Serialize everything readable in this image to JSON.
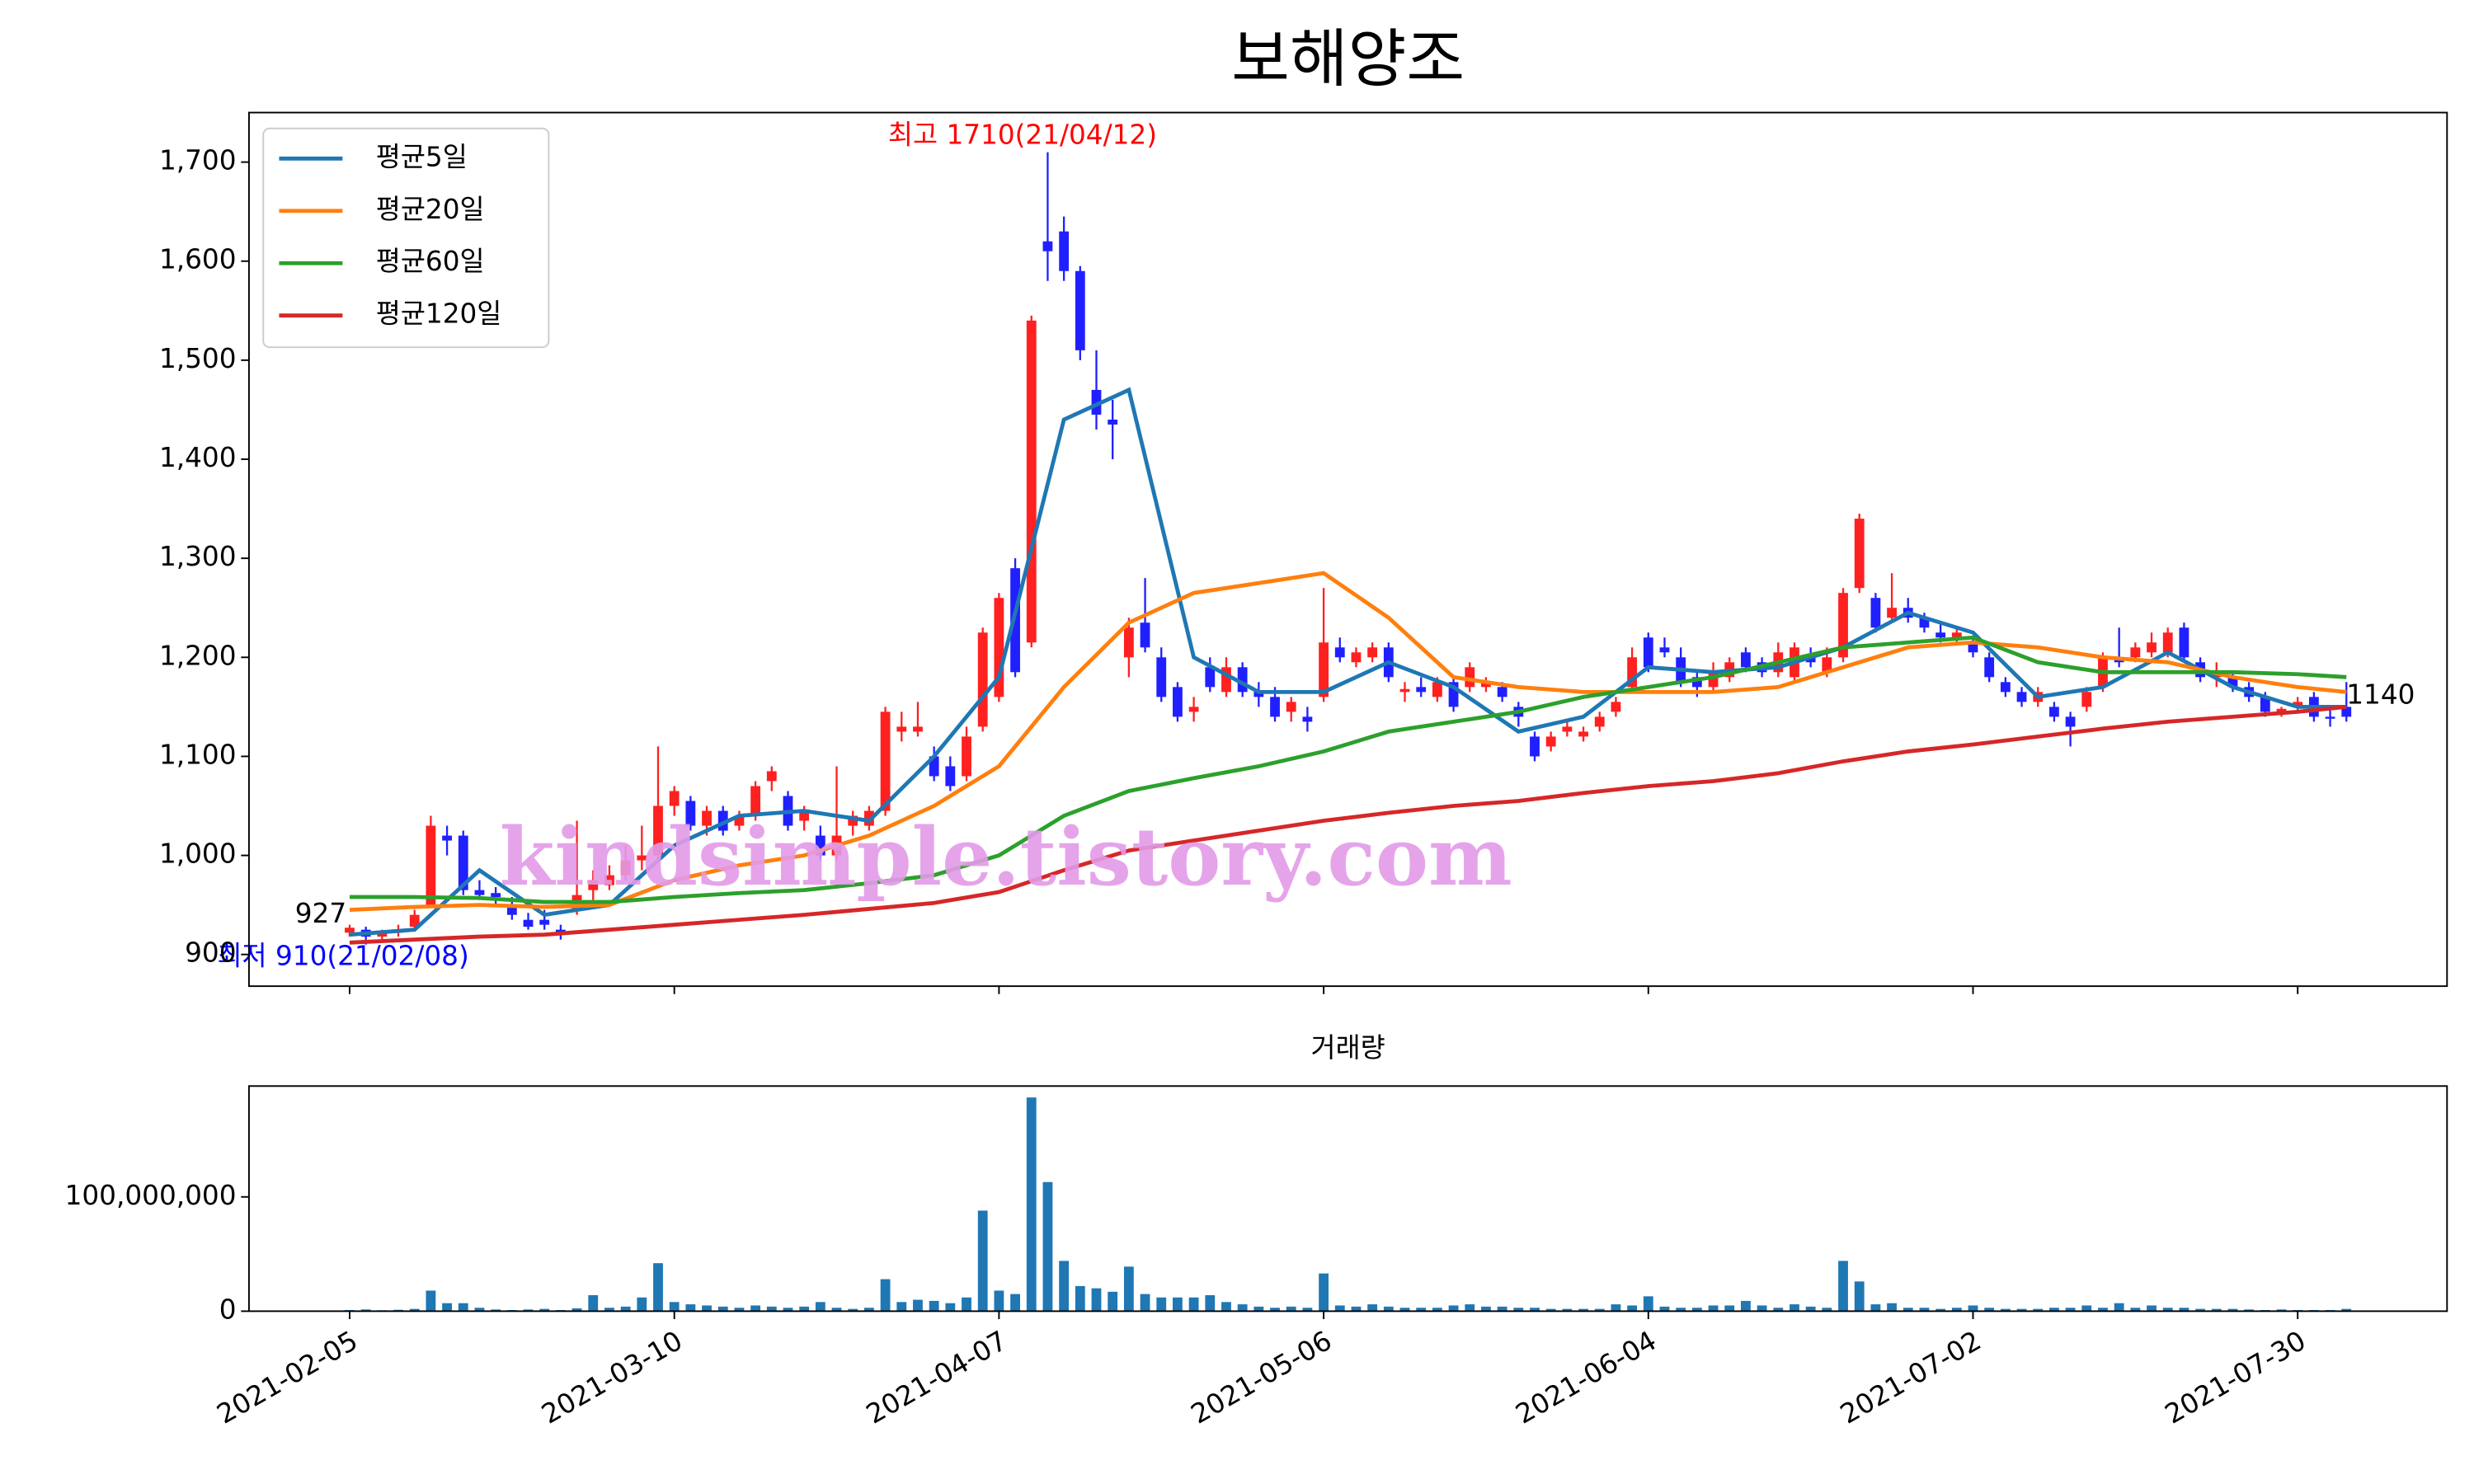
{
  "chart_data": {
    "type": "candlestick",
    "title": "보해양조",
    "volume_title": "거래량",
    "watermark": "kindsimple.tistory.com",
    "high_label": "최고 1710(21/04/12)",
    "low_label": "최저 910(21/02/08)",
    "first_close": 927,
    "last_close": 1140,
    "up_color": "#ff2020",
    "down_color": "#2020ff",
    "volume_color": "#1f77b4",
    "xlim": [
      -6.2,
      129.2
    ],
    "xticks": [
      {
        "value": 0,
        "label": "2021-02-05"
      },
      {
        "value": 20,
        "label": "2021-03-10"
      },
      {
        "value": 40,
        "label": "2021-04-07"
      },
      {
        "value": 60,
        "label": "2021-05-06"
      },
      {
        "value": 80,
        "label": "2021-06-04"
      },
      {
        "value": 100,
        "label": "2021-07-02"
      },
      {
        "value": 120,
        "label": "2021-07-30"
      }
    ],
    "ylim": [
      868,
      1750
    ],
    "yticks": [
      900,
      {
        "value": 1000,
        "label": "1,000"
      },
      {
        "value": 1100,
        "label": "1,100"
      },
      {
        "value": 1200,
        "label": "1,200"
      },
      {
        "value": 1300,
        "label": "1,300"
      },
      {
        "value": 1400,
        "label": "1,400"
      },
      {
        "value": 1500,
        "label": "1,500"
      },
      {
        "value": 1600,
        "label": "1,600"
      },
      {
        "value": 1700,
        "label": "1,700"
      }
    ],
    "vol_ylim": [
      0,
      197000000
    ],
    "vol_yticks": [
      0,
      {
        "value": 100000000,
        "label": "100,000,000"
      }
    ],
    "ohlc": [
      [
        922,
        930,
        918,
        927
      ],
      [
        925,
        928,
        910,
        918
      ],
      [
        918,
        925,
        915,
        922
      ],
      [
        922,
        930,
        918,
        925
      ],
      [
        928,
        945,
        925,
        940
      ],
      [
        950,
        1040,
        948,
        1030
      ],
      [
        1020,
        1030,
        1000,
        1015
      ],
      [
        1020,
        1025,
        960,
        965
      ],
      [
        965,
        975,
        955,
        960
      ],
      [
        962,
        968,
        950,
        958
      ],
      [
        950,
        958,
        935,
        940
      ],
      [
        935,
        942,
        925,
        928
      ],
      [
        935,
        945,
        925,
        930
      ],
      [
        925,
        930,
        915,
        920
      ],
      [
        945,
        1035,
        940,
        960
      ],
      [
        965,
        985,
        955,
        975
      ],
      [
        970,
        990,
        965,
        980
      ],
      [
        980,
        1010,
        975,
        995
      ],
      [
        995,
        1030,
        985,
        1000
      ],
      [
        1000,
        1110,
        995,
        1050
      ],
      [
        1050,
        1070,
        1040,
        1065
      ],
      [
        1055,
        1060,
        1025,
        1030
      ],
      [
        1030,
        1050,
        1020,
        1045
      ],
      [
        1045,
        1050,
        1020,
        1025
      ],
      [
        1030,
        1045,
        1025,
        1040
      ],
      [
        1040,
        1075,
        1035,
        1070
      ],
      [
        1075,
        1090,
        1065,
        1085
      ],
      [
        1060,
        1065,
        1025,
        1030
      ],
      [
        1035,
        1050,
        1025,
        1045
      ],
      [
        1020,
        1030,
        995,
        1000
      ],
      [
        1000,
        1090,
        995,
        1020
      ],
      [
        1030,
        1045,
        1020,
        1040
      ],
      [
        1030,
        1050,
        1025,
        1045
      ],
      [
        1045,
        1150,
        1040,
        1145
      ],
      [
        1125,
        1145,
        1115,
        1130
      ],
      [
        1125,
        1155,
        1120,
        1130
      ],
      [
        1100,
        1110,
        1075,
        1080
      ],
      [
        1090,
        1100,
        1065,
        1070
      ],
      [
        1080,
        1130,
        1075,
        1120
      ],
      [
        1130,
        1230,
        1125,
        1225
      ],
      [
        1160,
        1265,
        1155,
        1260
      ],
      [
        1290,
        1300,
        1180,
        1185
      ],
      [
        1215,
        1545,
        1210,
        1540
      ],
      [
        1620,
        1710,
        1580,
        1610
      ],
      [
        1630,
        1645,
        1580,
        1590
      ],
      [
        1590,
        1595,
        1500,
        1510
      ],
      [
        1470,
        1510,
        1430,
        1445
      ],
      [
        1440,
        1460,
        1400,
        1435
      ],
      [
        1200,
        1240,
        1180,
        1230
      ],
      [
        1235,
        1280,
        1205,
        1210
      ],
      [
        1200,
        1210,
        1155,
        1160
      ],
      [
        1170,
        1175,
        1135,
        1140
      ],
      [
        1145,
        1160,
        1135,
        1150
      ],
      [
        1190,
        1200,
        1165,
        1170
      ],
      [
        1165,
        1200,
        1160,
        1190
      ],
      [
        1190,
        1195,
        1160,
        1165
      ],
      [
        1165,
        1175,
        1150,
        1160
      ],
      [
        1160,
        1170,
        1135,
        1140
      ],
      [
        1145,
        1160,
        1135,
        1155
      ],
      [
        1140,
        1150,
        1125,
        1135
      ],
      [
        1160,
        1270,
        1155,
        1215
      ],
      [
        1210,
        1220,
        1195,
        1200
      ],
      [
        1195,
        1210,
        1190,
        1205
      ],
      [
        1200,
        1215,
        1195,
        1210
      ],
      [
        1210,
        1215,
        1175,
        1180
      ],
      [
        1165,
        1175,
        1155,
        1168
      ],
      [
        1170,
        1180,
        1160,
        1165
      ],
      [
        1160,
        1180,
        1155,
        1175
      ],
      [
        1175,
        1180,
        1145,
        1150
      ],
      [
        1170,
        1195,
        1165,
        1190
      ],
      [
        1170,
        1180,
        1165,
        1175
      ],
      [
        1170,
        1175,
        1155,
        1160
      ],
      [
        1150,
        1155,
        1130,
        1140
      ],
      [
        1120,
        1125,
        1095,
        1100
      ],
      [
        1110,
        1125,
        1105,
        1120
      ],
      [
        1125,
        1135,
        1120,
        1130
      ],
      [
        1120,
        1130,
        1115,
        1125
      ],
      [
        1130,
        1145,
        1125,
        1140
      ],
      [
        1145,
        1160,
        1140,
        1155
      ],
      [
        1170,
        1210,
        1165,
        1200
      ],
      [
        1220,
        1225,
        1185,
        1190
      ],
      [
        1210,
        1220,
        1200,
        1205
      ],
      [
        1200,
        1210,
        1170,
        1175
      ],
      [
        1180,
        1185,
        1160,
        1170
      ],
      [
        1170,
        1195,
        1165,
        1185
      ],
      [
        1180,
        1200,
        1175,
        1195
      ],
      [
        1205,
        1210,
        1185,
        1190
      ],
      [
        1195,
        1200,
        1180,
        1185
      ],
      [
        1185,
        1215,
        1180,
        1205
      ],
      [
        1180,
        1215,
        1175,
        1210
      ],
      [
        1200,
        1210,
        1190,
        1195
      ],
      [
        1185,
        1210,
        1180,
        1200
      ],
      [
        1200,
        1270,
        1195,
        1265
      ],
      [
        1270,
        1345,
        1265,
        1340
      ],
      [
        1260,
        1265,
        1225,
        1230
      ],
      [
        1240,
        1285,
        1235,
        1250
      ],
      [
        1250,
        1260,
        1235,
        1240
      ],
      [
        1240,
        1245,
        1225,
        1230
      ],
      [
        1225,
        1235,
        1215,
        1220
      ],
      [
        1220,
        1230,
        1215,
        1225
      ],
      [
        1215,
        1220,
        1200,
        1205
      ],
      [
        1200,
        1205,
        1175,
        1180
      ],
      [
        1175,
        1180,
        1160,
        1165
      ],
      [
        1165,
        1170,
        1150,
        1155
      ],
      [
        1155,
        1170,
        1150,
        1165
      ],
      [
        1150,
        1155,
        1135,
        1140
      ],
      [
        1140,
        1145,
        1110,
        1130
      ],
      [
        1150,
        1170,
        1145,
        1165
      ],
      [
        1170,
        1205,
        1165,
        1200
      ],
      [
        1200,
        1230,
        1190,
        1195
      ],
      [
        1200,
        1215,
        1195,
        1210
      ],
      [
        1205,
        1225,
        1200,
        1215
      ],
      [
        1205,
        1230,
        1200,
        1225
      ],
      [
        1230,
        1235,
        1195,
        1200
      ],
      [
        1195,
        1200,
        1175,
        1180
      ],
      [
        1180,
        1195,
        1170,
        1185
      ],
      [
        1180,
        1185,
        1165,
        1170
      ],
      [
        1170,
        1175,
        1155,
        1160
      ],
      [
        1160,
        1165,
        1140,
        1145
      ],
      [
        1145,
        1150,
        1140,
        1148
      ],
      [
        1150,
        1160,
        1145,
        1155
      ],
      [
        1160,
        1165,
        1135,
        1140
      ],
      [
        1140,
        1150,
        1130,
        1138
      ],
      [
        1150,
        1175,
        1135,
        1140
      ]
    ],
    "volume": [
      1000000,
      1500000,
      800000,
      1200000,
      2000000,
      18000000,
      7000000,
      7000000,
      3000000,
      1500000,
      1000000,
      1500000,
      2000000,
      1000000,
      2500000,
      14000000,
      3000000,
      4000000,
      12000000,
      42000000,
      8000000,
      6000000,
      5000000,
      4000000,
      3000000,
      5000000,
      4000000,
      3000000,
      4000000,
      8000000,
      3000000,
      2000000,
      3000000,
      28000000,
      8000000,
      10000000,
      9000000,
      7000000,
      12000000,
      88000000,
      18000000,
      15000000,
      187000000,
      113000000,
      44000000,
      22000000,
      20000000,
      17000000,
      39000000,
      15000000,
      12000000,
      12000000,
      12000000,
      14000000,
      8000000,
      6000000,
      4000000,
      3000000,
      4000000,
      3000000,
      33000000,
      5000000,
      4000000,
      6000000,
      4000000,
      3000000,
      3000000,
      3000000,
      5000000,
      6000000,
      4000000,
      4000000,
      3000000,
      3000000,
      2000000,
      2000000,
      2000000,
      2000000,
      6000000,
      5000000,
      13000000,
      4000000,
      3000000,
      3000000,
      5000000,
      5000000,
      9000000,
      5000000,
      3000000,
      6000000,
      4000000,
      3000000,
      44000000,
      26000000,
      6000000,
      7000000,
      3000000,
      3000000,
      2000000,
      3000000,
      5000000,
      3000000,
      2000000,
      2000000,
      2000000,
      3000000,
      3000000,
      5000000,
      3000000,
      7000000,
      3000000,
      5000000,
      3000000,
      3000000,
      2000000,
      2000000,
      2000000,
      1500000,
      1000000,
      1500000,
      1000000,
      1000000,
      1000000,
      2000000
    ],
    "ma_x": [
      0,
      4,
      8,
      12,
      16,
      20,
      24,
      28,
      32,
      36,
      40,
      44,
      48,
      52,
      56,
      60,
      64,
      68,
      72,
      76,
      80,
      84,
      88,
      92,
      96,
      100,
      104,
      108,
      112,
      116,
      120,
      123
    ],
    "series": [
      {
        "name": "평균5일",
        "color": "#1f77b4",
        "values": [
          920,
          925,
          985,
          940,
          950,
          1010,
          1040,
          1045,
          1035,
          1100,
          1180,
          1440,
          1470,
          1200,
          1165,
          1165,
          1195,
          1170,
          1125,
          1140,
          1190,
          1185,
          1190,
          1210,
          1245,
          1225,
          1160,
          1170,
          1205,
          1170,
          1150,
          1150
        ]
      },
      {
        "name": "평균20일",
        "color": "#ff7f0e",
        "values": [
          945,
          948,
          950,
          948,
          950,
          975,
          990,
          1000,
          1020,
          1050,
          1090,
          1170,
          1235,
          1265,
          1275,
          1285,
          1240,
          1180,
          1170,
          1165,
          1165,
          1165,
          1170,
          1190,
          1210,
          1215,
          1210,
          1200,
          1195,
          1180,
          1170,
          1165
        ]
      },
      {
        "name": "평균60일",
        "color": "#2ca02c",
        "values": [
          958,
          958,
          957,
          953,
          953,
          958,
          962,
          965,
          972,
          980,
          1000,
          1040,
          1065,
          1078,
          1090,
          1105,
          1125,
          1135,
          1145,
          1160,
          1170,
          1180,
          1195,
          1210,
          1215,
          1220,
          1195,
          1185,
          1185,
          1185,
          1183,
          1180
        ]
      },
      {
        "name": "평균120일",
        "color": "#d62728",
        "values": [
          912,
          915,
          918,
          920,
          925,
          930,
          935,
          940,
          946,
          952,
          963,
          985,
          1005,
          1015,
          1025,
          1035,
          1043,
          1050,
          1055,
          1063,
          1070,
          1075,
          1083,
          1095,
          1105,
          1112,
          1120,
          1128,
          1135,
          1140,
          1145,
          1150
        ]
      }
    ],
    "legend": "upper left"
  }
}
